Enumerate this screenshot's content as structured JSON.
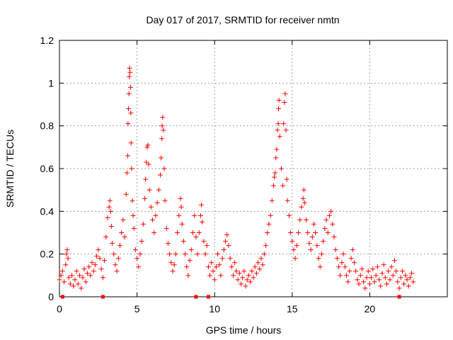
{
  "chart_data": {
    "type": "scatter",
    "title": "Day 017 of 2017, SRMTID for receiver nmtn",
    "xlabel": "GPS time / hours",
    "ylabel": "SRMTID / TECUs",
    "xlim": [
      0,
      25
    ],
    "ylim": [
      0,
      1.2
    ],
    "grid": true,
    "x_ticks": [
      0,
      5,
      10,
      15,
      20
    ],
    "x_tick_labels": [
      "0",
      "5",
      "10",
      "15",
      "20"
    ],
    "y_ticks": [
      0,
      0.2,
      0.4,
      0.6,
      0.8,
      1,
      1.2
    ],
    "y_tick_labels": [
      "0",
      "0.2",
      "0.4",
      "0.6",
      "0.8",
      "1",
      "1.2"
    ],
    "series": [
      {
        "name": "SRMTID",
        "marker": "plus",
        "color": "#ff0000",
        "points": [
          [
            0.0,
            0.08
          ],
          [
            0.1,
            0.1
          ],
          [
            0.2,
            0.12
          ],
          [
            0.3,
            0.07
          ],
          [
            0.4,
            0.15
          ],
          [
            0.45,
            0.2
          ],
          [
            0.5,
            0.22
          ],
          [
            0.55,
            0.18
          ],
          [
            0.6,
            0.09
          ],
          [
            0.7,
            0.06
          ],
          [
            0.8,
            0.1
          ],
          [
            0.9,
            0.05
          ],
          [
            1.0,
            0.08
          ],
          [
            1.1,
            0.12
          ],
          [
            1.2,
            0.06
          ],
          [
            1.3,
            0.1
          ],
          [
            1.4,
            0.04
          ],
          [
            1.5,
            0.09
          ],
          [
            1.6,
            0.13
          ],
          [
            1.7,
            0.07
          ],
          [
            1.8,
            0.11
          ],
          [
            1.9,
            0.14
          ],
          [
            2.0,
            0.1
          ],
          [
            2.1,
            0.16
          ],
          [
            2.2,
            0.12
          ],
          [
            2.3,
            0.15
          ],
          [
            2.4,
            0.19
          ],
          [
            2.5,
            0.22
          ],
          [
            2.6,
            0.18
          ],
          [
            2.7,
            0.13
          ],
          [
            2.8,
            0.09
          ],
          [
            2.9,
            0.17
          ],
          [
            3.0,
            0.28
          ],
          [
            3.1,
            0.37
          ],
          [
            3.2,
            0.42
          ],
          [
            3.25,
            0.45
          ],
          [
            3.3,
            0.4
          ],
          [
            3.35,
            0.33
          ],
          [
            3.4,
            0.25
          ],
          [
            3.5,
            0.2
          ],
          [
            3.6,
            0.15
          ],
          [
            3.7,
            0.12
          ],
          [
            3.8,
            0.18
          ],
          [
            3.9,
            0.24
          ],
          [
            4.0,
            0.3
          ],
          [
            4.1,
            0.36
          ],
          [
            4.2,
            0.28
          ],
          [
            4.3,
            0.48
          ],
          [
            4.35,
            0.58
          ],
          [
            4.4,
            0.66
          ],
          [
            4.42,
            0.81
          ],
          [
            4.45,
            0.88
          ],
          [
            4.48,
            0.95
          ],
          [
            4.5,
            1.03
          ],
          [
            4.52,
            1.07
          ],
          [
            4.55,
            1.05
          ],
          [
            4.58,
            0.98
          ],
          [
            4.6,
            0.86
          ],
          [
            4.62,
            0.72
          ],
          [
            4.65,
            0.6
          ],
          [
            4.7,
            0.45
          ],
          [
            4.75,
            0.38
          ],
          [
            4.8,
            0.32
          ],
          [
            4.9,
            0.22
          ],
          [
            5.0,
            0.18
          ],
          [
            5.1,
            0.14
          ],
          [
            5.2,
            0.2
          ],
          [
            5.3,
            0.26
          ],
          [
            5.4,
            0.34
          ],
          [
            5.5,
            0.46
          ],
          [
            5.55,
            0.55
          ],
          [
            5.6,
            0.63
          ],
          [
            5.65,
            0.7
          ],
          [
            5.7,
            0.71
          ],
          [
            5.75,
            0.62
          ],
          [
            5.8,
            0.5
          ],
          [
            5.9,
            0.42
          ],
          [
            6.0,
            0.36
          ],
          [
            6.1,
            0.3
          ],
          [
            6.2,
            0.38
          ],
          [
            6.3,
            0.44
          ],
          [
            6.4,
            0.5
          ],
          [
            6.5,
            0.57
          ],
          [
            6.55,
            0.65
          ],
          [
            6.6,
            0.74
          ],
          [
            6.62,
            0.8
          ],
          [
            6.65,
            0.84
          ],
          [
            6.7,
            0.78
          ],
          [
            6.75,
            0.6
          ],
          [
            6.8,
            0.45
          ],
          [
            6.9,
            0.32
          ],
          [
            7.0,
            0.25
          ],
          [
            7.1,
            0.2
          ],
          [
            7.2,
            0.16
          ],
          [
            7.3,
            0.12
          ],
          [
            7.4,
            0.15
          ],
          [
            7.5,
            0.2
          ],
          [
            7.6,
            0.3
          ],
          [
            7.7,
            0.38
          ],
          [
            7.8,
            0.46
          ],
          [
            7.85,
            0.42
          ],
          [
            7.9,
            0.34
          ],
          [
            8.0,
            0.26
          ],
          [
            8.1,
            0.2
          ],
          [
            8.2,
            0.14
          ],
          [
            8.3,
            0.1
          ],
          [
            8.4,
            0.17
          ],
          [
            8.5,
            0.22
          ],
          [
            8.6,
            0.3
          ],
          [
            8.7,
            0.38
          ],
          [
            8.8,
            0.28
          ],
          [
            8.9,
            0.2
          ],
          [
            9.0,
            0.3
          ],
          [
            9.1,
            0.38
          ],
          [
            9.15,
            0.43
          ],
          [
            9.2,
            0.35
          ],
          [
            9.3,
            0.26
          ],
          [
            9.4,
            0.2
          ],
          [
            9.5,
            0.24
          ],
          [
            9.6,
            0.14
          ],
          [
            9.7,
            0.1
          ],
          [
            9.8,
            0.16
          ],
          [
            9.9,
            0.12
          ],
          [
            10.0,
            0.08
          ],
          [
            10.1,
            0.14
          ],
          [
            10.2,
            0.2
          ],
          [
            10.3,
            0.15
          ],
          [
            10.4,
            0.1
          ],
          [
            10.5,
            0.18
          ],
          [
            10.6,
            0.22
          ],
          [
            10.7,
            0.26
          ],
          [
            10.8,
            0.29
          ],
          [
            10.9,
            0.24
          ],
          [
            11.0,
            0.18
          ],
          [
            11.1,
            0.14
          ],
          [
            11.2,
            0.1
          ],
          [
            11.3,
            0.16
          ],
          [
            11.4,
            0.12
          ],
          [
            11.5,
            0.08
          ],
          [
            11.6,
            0.11
          ],
          [
            11.7,
            0.06
          ],
          [
            11.8,
            0.09
          ],
          [
            11.9,
            0.12
          ],
          [
            12.0,
            0.05
          ],
          [
            12.1,
            0.08
          ],
          [
            12.2,
            0.1
          ],
          [
            12.3,
            0.07
          ],
          [
            12.4,
            0.12
          ],
          [
            12.5,
            0.09
          ],
          [
            12.6,
            0.14
          ],
          [
            12.7,
            0.11
          ],
          [
            12.8,
            0.16
          ],
          [
            12.9,
            0.13
          ],
          [
            13.0,
            0.18
          ],
          [
            13.1,
            0.15
          ],
          [
            13.2,
            0.2
          ],
          [
            13.3,
            0.24
          ],
          [
            13.4,
            0.3
          ],
          [
            13.5,
            0.34
          ],
          [
            13.6,
            0.38
          ],
          [
            13.7,
            0.45
          ],
          [
            13.8,
            0.52
          ],
          [
            13.85,
            0.56
          ],
          [
            13.9,
            0.58
          ],
          [
            13.95,
            0.65
          ],
          [
            14.0,
            0.69
          ],
          [
            14.05,
            0.78
          ],
          [
            14.1,
            0.81
          ],
          [
            14.12,
            0.88
          ],
          [
            14.15,
            0.92
          ],
          [
            14.2,
            0.75
          ],
          [
            14.3,
            0.6
          ],
          [
            14.4,
            0.52
          ],
          [
            14.45,
            0.81
          ],
          [
            14.5,
            0.91
          ],
          [
            14.55,
            0.95
          ],
          [
            14.6,
            0.78
          ],
          [
            14.65,
            0.55
          ],
          [
            14.7,
            0.45
          ],
          [
            14.8,
            0.38
          ],
          [
            14.9,
            0.3
          ],
          [
            15.0,
            0.26
          ],
          [
            15.1,
            0.22
          ],
          [
            15.2,
            0.18
          ],
          [
            15.3,
            0.24
          ],
          [
            15.4,
            0.3
          ],
          [
            15.5,
            0.36
          ],
          [
            15.6,
            0.42
          ],
          [
            15.7,
            0.46
          ],
          [
            15.75,
            0.5
          ],
          [
            15.8,
            0.44
          ],
          [
            15.9,
            0.36
          ],
          [
            16.0,
            0.3
          ],
          [
            16.1,
            0.25
          ],
          [
            16.2,
            0.22
          ],
          [
            16.3,
            0.28
          ],
          [
            16.4,
            0.34
          ],
          [
            16.5,
            0.3
          ],
          [
            16.6,
            0.24
          ],
          [
            16.7,
            0.18
          ],
          [
            16.8,
            0.14
          ],
          [
            16.9,
            0.2
          ],
          [
            17.0,
            0.26
          ],
          [
            17.1,
            0.32
          ],
          [
            17.2,
            0.36
          ],
          [
            17.3,
            0.3
          ],
          [
            17.4,
            0.38
          ],
          [
            17.5,
            0.4
          ],
          [
            17.6,
            0.34
          ],
          [
            17.7,
            0.28
          ],
          [
            17.8,
            0.22
          ],
          [
            17.9,
            0.18
          ],
          [
            18.0,
            0.14
          ],
          [
            18.1,
            0.1
          ],
          [
            18.2,
            0.16
          ],
          [
            18.3,
            0.2
          ],
          [
            18.4,
            0.14
          ],
          [
            18.5,
            0.1
          ],
          [
            18.6,
            0.07
          ],
          [
            18.7,
            0.12
          ],
          [
            18.8,
            0.18
          ],
          [
            18.9,
            0.22
          ],
          [
            19.0,
            0.16
          ],
          [
            19.1,
            0.12
          ],
          [
            19.2,
            0.08
          ],
          [
            19.3,
            0.06
          ],
          [
            19.4,
            0.1
          ],
          [
            19.5,
            0.13
          ],
          [
            19.6,
            0.07
          ],
          [
            19.7,
            0.04
          ],
          [
            19.8,
            0.09
          ],
          [
            19.9,
            0.12
          ],
          [
            20.0,
            0.06
          ],
          [
            20.1,
            0.09
          ],
          [
            20.2,
            0.13
          ],
          [
            20.3,
            0.07
          ],
          [
            20.4,
            0.1
          ],
          [
            20.5,
            0.14
          ],
          [
            20.6,
            0.08
          ],
          [
            20.7,
            0.05
          ],
          [
            20.8,
            0.11
          ],
          [
            20.9,
            0.15
          ],
          [
            21.0,
            0.09
          ],
          [
            21.1,
            0.06
          ],
          [
            21.2,
            0.12
          ],
          [
            21.3,
            0.08
          ],
          [
            21.4,
            0.14
          ],
          [
            21.5,
            0.1
          ],
          [
            21.6,
            0.17
          ],
          [
            21.7,
            0.12
          ],
          [
            21.8,
            0.07
          ],
          [
            21.9,
            0.04
          ],
          [
            22.0,
            0.09
          ],
          [
            22.1,
            0.12
          ],
          [
            22.2,
            0.06
          ],
          [
            22.3,
            0.1
          ],
          [
            22.4,
            0.08
          ],
          [
            22.5,
            0.05
          ],
          [
            22.6,
            0.09
          ],
          [
            22.7,
            0.11
          ],
          [
            22.8,
            0.07
          ]
        ]
      },
      {
        "name": "markers-at-zero",
        "marker": "square",
        "color": "#ff0000",
        "points": [
          [
            0.2,
            0.0
          ],
          [
            2.8,
            0.0
          ],
          [
            8.8,
            0.0
          ],
          [
            9.6,
            0.0
          ],
          [
            21.9,
            0.0
          ]
        ]
      }
    ]
  }
}
